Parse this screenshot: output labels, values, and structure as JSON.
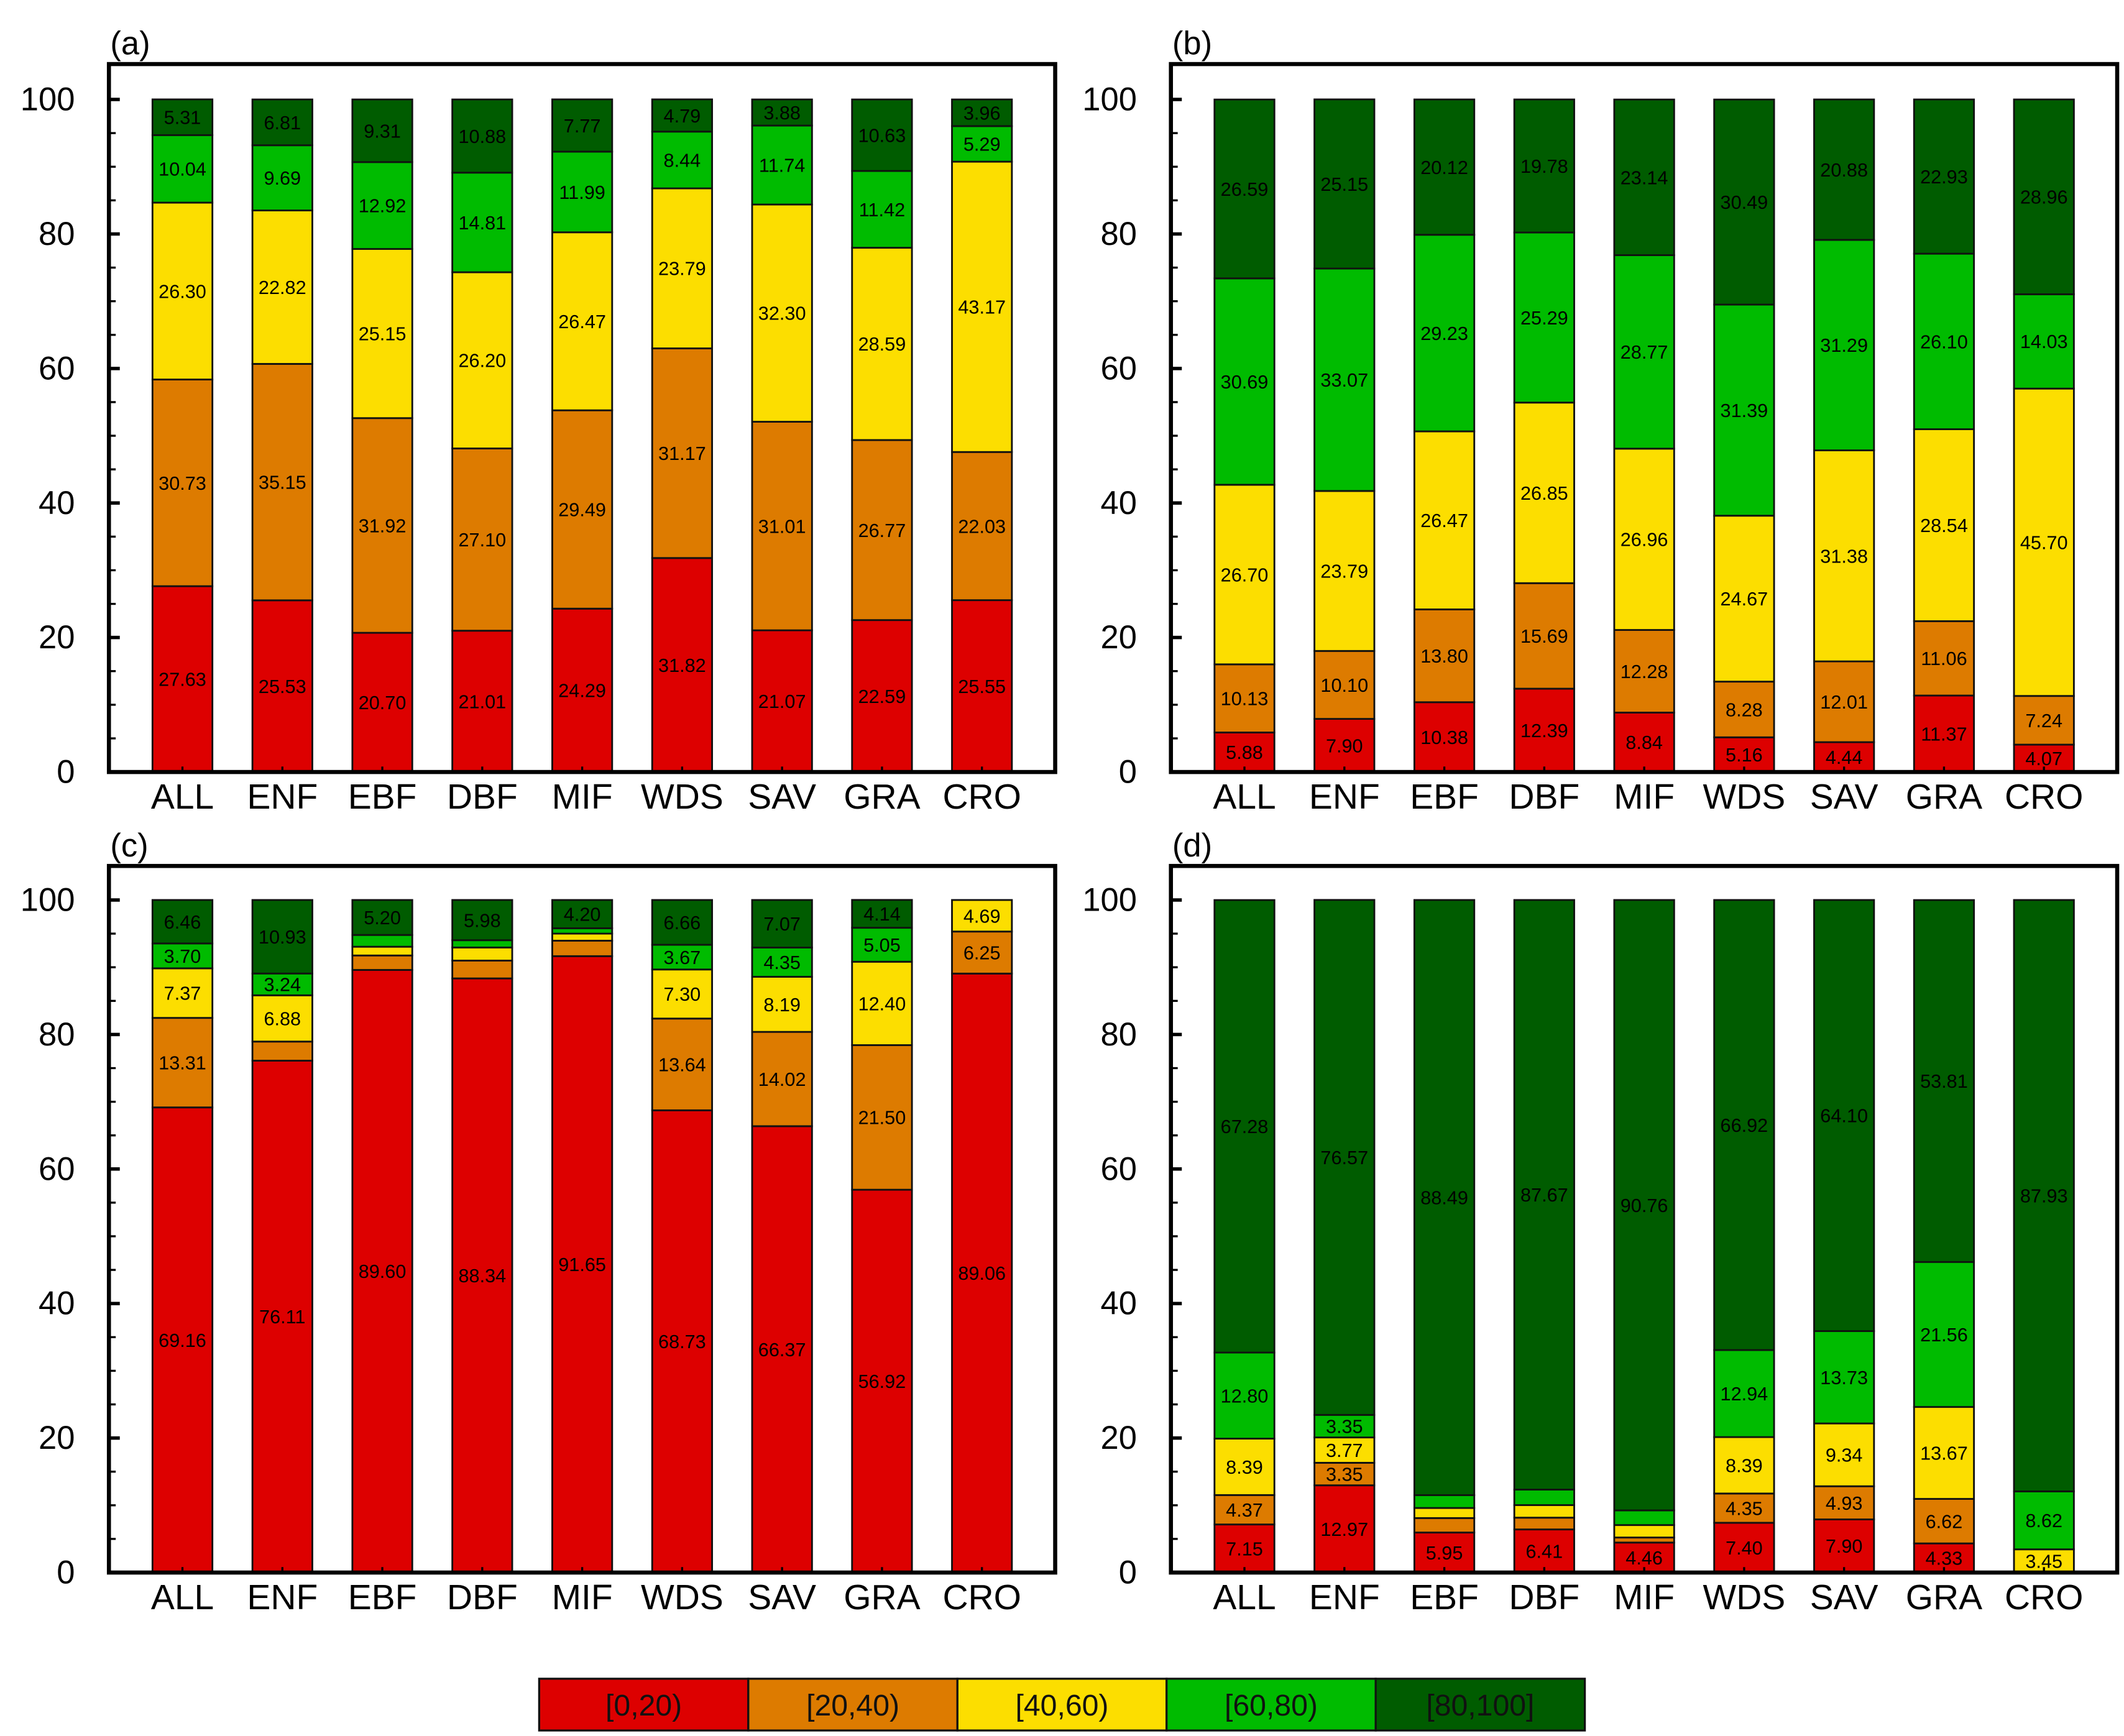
{
  "chart_data": {
    "type": "bar",
    "stacked": true,
    "categories": [
      "ALL",
      "ENF",
      "EBF",
      "DBF",
      "MIF",
      "WDS",
      "SAV",
      "GRA",
      "CRO"
    ],
    "legend": {
      "placement": "bottom-center",
      "entries": [
        {
          "label": "[0,20)",
          "color": "#DD0000"
        },
        {
          "label": "[20,40)",
          "color": "#DD7B00"
        },
        {
          "label": "[40,60)",
          "color": "#FCDE00"
        },
        {
          "label": "[60,80)",
          "color": "#00BB00"
        },
        {
          "label": "[80,100]",
          "color": "#005C00"
        }
      ]
    },
    "ylim": [
      0,
      100
    ],
    "yticks": [
      "0",
      "20",
      "40",
      "60",
      "80",
      "100"
    ],
    "label_threshold": 3,
    "panels": [
      {
        "label": "(a)",
        "series": [
          {
            "name": "[0,20)",
            "values": [
              27.63,
              25.53,
              20.7,
              21.01,
              24.29,
              31.82,
              21.07,
              22.59,
              25.55
            ]
          },
          {
            "name": "[20,40)",
            "values": [
              30.73,
              35.15,
              31.92,
              27.1,
              29.49,
              31.17,
              31.01,
              26.77,
              22.03
            ]
          },
          {
            "name": "[40,60)",
            "values": [
              26.3,
              22.82,
              25.15,
              26.2,
              26.47,
              23.79,
              32.3,
              28.59,
              43.17
            ]
          },
          {
            "name": "[60,80)",
            "values": [
              10.04,
              9.69,
              12.92,
              14.81,
              11.99,
              8.44,
              11.74,
              11.42,
              5.29
            ]
          },
          {
            "name": "[80,100]",
            "values": [
              5.31,
              6.81,
              9.31,
              10.88,
              7.77,
              4.79,
              3.88,
              10.63,
              3.96
            ]
          }
        ]
      },
      {
        "label": "(b)",
        "series": [
          {
            "name": "[0,20)",
            "values": [
              5.88,
              7.9,
              10.38,
              12.39,
              8.84,
              5.16,
              4.44,
              11.37,
              4.07
            ]
          },
          {
            "name": "[20,40)",
            "values": [
              10.13,
              10.1,
              13.8,
              15.69,
              12.28,
              8.28,
              12.01,
              11.06,
              7.24
            ]
          },
          {
            "name": "[40,60)",
            "values": [
              26.7,
              23.79,
              26.47,
              26.85,
              26.96,
              24.67,
              31.38,
              28.54,
              45.7
            ]
          },
          {
            "name": "[60,80)",
            "values": [
              30.69,
              33.07,
              29.23,
              25.29,
              28.77,
              31.39,
              31.29,
              26.1,
              14.03
            ]
          },
          {
            "name": "[80,100]",
            "values": [
              26.59,
              25.15,
              20.12,
              19.78,
              23.14,
              30.49,
              20.88,
              22.93,
              28.96
            ]
          }
        ]
      },
      {
        "label": "(c)",
        "series": [
          {
            "name": "[0,20)",
            "values": [
              69.16,
              76.11,
              89.6,
              88.34,
              91.65,
              68.73,
              66.37,
              56.92,
              89.06
            ]
          },
          {
            "name": "[20,40)",
            "values": [
              13.31,
              2.84,
              2.15,
              2.65,
              2.3,
              13.64,
              14.02,
              21.5,
              6.25
            ]
          },
          {
            "name": "[40,60)",
            "values": [
              7.37,
              6.88,
              1.3,
              1.95,
              1.05,
              7.3,
              8.19,
              12.4,
              4.69
            ]
          },
          {
            "name": "[60,80)",
            "values": [
              3.7,
              3.24,
              1.75,
              1.08,
              0.8,
              3.67,
              4.35,
              5.05,
              0
            ]
          },
          {
            "name": "[80,100]",
            "values": [
              6.46,
              10.93,
              5.2,
              5.98,
              4.2,
              6.66,
              7.07,
              4.14,
              0
            ]
          }
        ]
      },
      {
        "label": "(d)",
        "series": [
          {
            "name": "[0,20)",
            "values": [
              7.15,
              12.97,
              5.95,
              6.41,
              4.46,
              7.4,
              7.9,
              4.33,
              0
            ]
          },
          {
            "name": "[20,40)",
            "values": [
              4.37,
              3.35,
              2.15,
              1.75,
              0.75,
              4.35,
              4.93,
              6.62,
              0
            ]
          },
          {
            "name": "[40,60)",
            "values": [
              8.39,
              3.77,
              1.5,
              1.87,
              1.85,
              8.39,
              9.34,
              13.67,
              3.45
            ]
          },
          {
            "name": "[60,80)",
            "values": [
              12.8,
              3.35,
              1.91,
              2.3,
              2.18,
              12.94,
              13.73,
              21.56,
              8.62
            ]
          },
          {
            "name": "[80,100]",
            "values": [
              67.28,
              76.57,
              88.49,
              87.67,
              90.76,
              66.92,
              64.1,
              53.81,
              87.93
            ]
          }
        ]
      }
    ]
  }
}
